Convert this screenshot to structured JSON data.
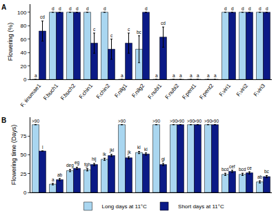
{
  "chart_data": [
    {
      "type": "bar",
      "panel": "A",
      "y_label": "Flowering (%)",
      "categories": [
        "F. iinumae1",
        "F.buch1",
        "F.buch2",
        "F.chin1",
        "F.chin2",
        "F.nilg1",
        "F.nilg2",
        "F.nubi1",
        "F.nubi2",
        "F.pent1",
        "F.pent2",
        "F.viri1",
        "F.viri2",
        "F.viri3"
      ],
      "series": [
        {
          "color": "#a9d6f0",
          "values": [
            0,
            100,
            100,
            100,
            100,
            0,
            45,
            0,
            0,
            0,
            0,
            100,
            100,
            100
          ],
          "errors": [
            null,
            null,
            null,
            null,
            null,
            null,
            20,
            null,
            null,
            null,
            null,
            null,
            null,
            null
          ],
          "letters": [
            "a",
            "d",
            "d",
            "d",
            "d",
            "a",
            "bc",
            "a",
            "a",
            "a",
            "a",
            "d",
            "d",
            "d"
          ]
        },
        {
          "color": "#0b1a86",
          "values": [
            72,
            100,
            100,
            54,
            45,
            54,
            100,
            63,
            0,
            0,
            0,
            100,
            100,
            100
          ],
          "errors": [
            15,
            null,
            null,
            15,
            15,
            15,
            null,
            15,
            null,
            null,
            null,
            null,
            null,
            null
          ],
          "letters": [
            "cd",
            "d",
            "d",
            "c",
            "c",
            "c",
            "d",
            "cd",
            "a",
            "a",
            "a",
            "d",
            "d",
            "d"
          ]
        }
      ],
      "ylim": [
        0,
        112
      ],
      "yticks": [
        0,
        20,
        40,
        60,
        80,
        100
      ],
      "grid": false
    },
    {
      "type": "bar",
      "panel": "B",
      "y_label": "Flowering time (Days)",
      "categories": [
        "F. iinumae1",
        "F.buch1",
        "F.buch2",
        "F.chin1",
        "F.chin2",
        "F.nilg1",
        "F.nilg2",
        "F.nubi1",
        "F.nubi2",
        "F.pent1",
        "F.pent2",
        "F.viri1",
        "F.viri2",
        "F.viri3"
      ],
      "tick_labels": "y",
      "series": [
        {
          "name": "Long days at 11°C",
          "color": "#a9d6f0",
          "values": [
            90,
            11,
            29,
            30,
            44,
            90,
            53,
            90,
            90,
            90,
            90,
            24,
            24,
            14
          ],
          "errors": [
            null,
            1,
            1.5,
            1.5,
            1.5,
            null,
            1.5,
            null,
            null,
            null,
            null,
            1.5,
            1.5,
            1.5
          ],
          "letters": [
            ">90",
            "a",
            "deg",
            "fgh",
            "ik",
            ">90",
            "kl",
            ">90",
            ">90",
            ">90",
            ">90",
            "bcd",
            "bcd",
            "ab"
          ]
        },
        {
          "name": "Short days at 11°C",
          "color": "#0b1a86",
          "values": [
            55,
            17,
            32,
            37,
            49,
            46,
            51,
            37,
            90,
            90,
            90,
            28,
            26,
            21
          ],
          "errors": [
            null,
            1.5,
            1.5,
            1.5,
            1.5,
            1.5,
            1.5,
            1.5,
            null,
            null,
            null,
            1.5,
            1.5,
            1.5
          ],
          "letters": [
            "l",
            "ab",
            "eg",
            "hij",
            "jkl",
            "jk",
            "kl",
            "gi",
            ">90",
            ">90",
            ">90",
            "cef",
            "ce",
            "bc"
          ]
        }
      ],
      "ylim": [
        0,
        100
      ],
      "yticks": [
        0,
        25,
        50,
        75
      ],
      "grid": false,
      "legend": "bottom"
    }
  ]
}
